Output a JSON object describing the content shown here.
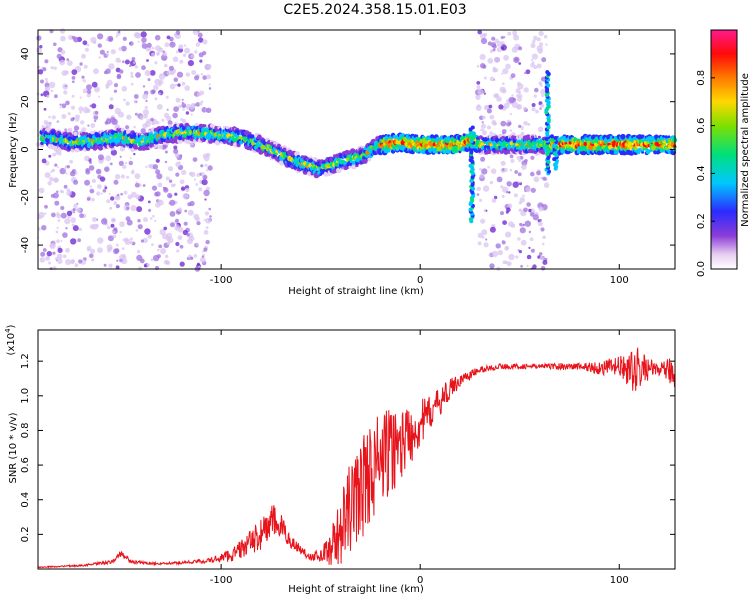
{
  "title": "C2E5.2024.358.15.01.E03",
  "colors": {
    "snr_line": "#e8141c",
    "background": "#ffffff",
    "axis": "#000000"
  },
  "chart_data": [
    {
      "type": "heatmap",
      "xlabel": "Height of straight line (km)",
      "ylabel": "Frequency (Hz)",
      "xlim": [
        -192,
        128
      ],
      "ylim": [
        -50,
        50
      ],
      "xticks": [
        -100,
        0,
        100
      ],
      "xtick_labels": [
        "-100",
        "0",
        "100"
      ],
      "yticks": [
        -40,
        -20,
        0,
        20,
        40
      ],
      "ytick_labels": [
        "-40",
        "-20",
        "0",
        "20",
        "40"
      ],
      "colorbar": {
        "label": "Normalized spectral amplitude",
        "range": [
          0.0,
          1.0
        ],
        "ticks": [
          0.0,
          0.2,
          0.4,
          0.6,
          0.8
        ],
        "tick_labels": [
          "0.0",
          "0.2",
          "0.4",
          "0.6",
          "0.8"
        ],
        "colormap": "rainbow (white-purple-blue-cyan-green-yellow-red-magenta)"
      },
      "ridge": {
        "x": [
          -188,
          -175,
          -160,
          -150,
          -140,
          -130,
          -120,
          -110,
          -100,
          -90,
          -80,
          -70,
          -60,
          -50,
          -40,
          -30,
          -20,
          -10,
          0,
          10,
          20,
          26,
          30,
          60,
          66,
          70,
          80,
          90,
          100,
          110,
          128
        ],
        "y": [
          5,
          3,
          4,
          5,
          3,
          6,
          7,
          7,
          6,
          5,
          2,
          -2,
          -6,
          -8,
          -5,
          -3,
          2,
          3,
          2,
          2,
          2,
          4,
          2,
          2,
          2,
          2,
          2,
          2,
          2,
          2,
          2
        ]
      },
      "noise_bands": [
        [
          -192,
          -105
        ],
        [
          29,
          64
        ]
      ],
      "spikes": [
        {
          "x": 26,
          "y_range": [
            -30,
            10
          ]
        },
        {
          "x": 64,
          "y_range": [
            -10,
            33
          ]
        },
        {
          "x": 68,
          "y_range": [
            -8,
            5
          ]
        }
      ]
    },
    {
      "type": "line",
      "xlabel": "Height of straight line (km)",
      "ylabel": "SNR (10 * v/v)",
      "y_multiplier": "(x10^4)",
      "xlim": [
        -192,
        128
      ],
      "ylim": [
        0,
        1.38
      ],
      "xticks": [
        -100,
        0,
        100
      ],
      "xtick_labels": [
        "-100",
        "0",
        "100"
      ],
      "yticks": [
        0.2,
        0.4,
        0.6,
        0.8,
        1.0,
        1.2
      ],
      "ytick_labels": [
        "0.2",
        "0.4",
        "0.6",
        "0.8",
        "1.0",
        "1.2"
      ],
      "series": [
        {
          "x": [
            -192,
            -170,
            -155,
            -150,
            -145,
            -130,
            -115,
            -105,
            -95,
            -88,
            -80,
            -74,
            -70,
            -65,
            -60,
            -55,
            -50,
            -45,
            -40,
            -35,
            -30,
            -25,
            -20,
            -15,
            -10,
            -5,
            0,
            5,
            10,
            15,
            20,
            25,
            30,
            40,
            50,
            60,
            70,
            80,
            90,
            100,
            105,
            110,
            115,
            120,
            128
          ],
          "y": [
            0.01,
            0.02,
            0.04,
            0.09,
            0.04,
            0.03,
            0.04,
            0.05,
            0.08,
            0.13,
            0.2,
            0.28,
            0.24,
            0.16,
            0.11,
            0.07,
            0.08,
            0.12,
            0.22,
            0.35,
            0.46,
            0.56,
            0.62,
            0.68,
            0.72,
            0.78,
            0.84,
            0.9,
            0.97,
            1.04,
            1.09,
            1.12,
            1.15,
            1.17,
            1.17,
            1.17,
            1.17,
            1.17,
            1.16,
            1.17,
            1.14,
            1.15,
            1.16,
            1.15,
            1.14
          ],
          "noise": [
            0.003,
            0.005,
            0.01,
            0.02,
            0.01,
            0.006,
            0.01,
            0.015,
            0.04,
            0.06,
            0.09,
            0.1,
            0.08,
            0.04,
            0.03,
            0.02,
            0.04,
            0.1,
            0.2,
            0.28,
            0.3,
            0.3,
            0.3,
            0.25,
            0.22,
            0.18,
            0.14,
            0.1,
            0.08,
            0.06,
            0.04,
            0.03,
            0.02,
            0.015,
            0.015,
            0.015,
            0.02,
            0.02,
            0.04,
            0.06,
            0.1,
            0.14,
            0.06,
            0.03,
            0.1
          ]
        }
      ]
    }
  ]
}
